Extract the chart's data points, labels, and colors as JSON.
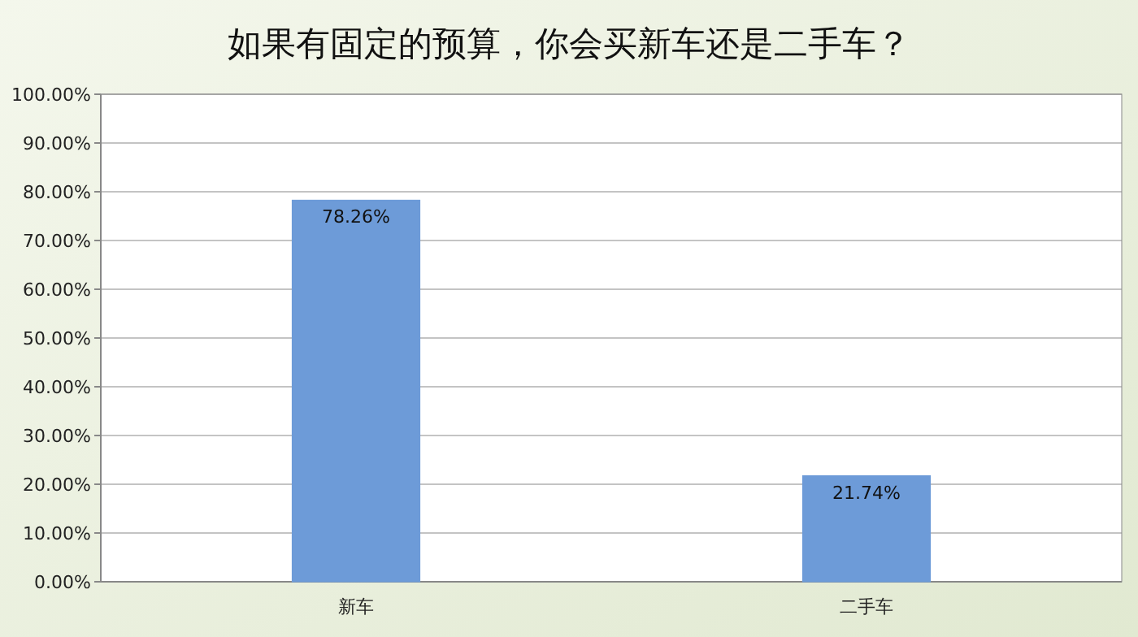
{
  "chart_data": {
    "type": "bar",
    "title": "如果有固定的预算，你会买新车还是二手车？",
    "categories": [
      "新车",
      "二手车"
    ],
    "values": [
      78.26,
      21.74
    ],
    "value_labels": [
      "78.26%",
      "21.74%"
    ],
    "color": "#6d9bd8",
    "ylim": [
      0,
      100
    ],
    "yticks": [
      {
        "value": 0,
        "label": "0.00%"
      },
      {
        "value": 10,
        "label": "10.00%"
      },
      {
        "value": 20,
        "label": "20.00%"
      },
      {
        "value": 30,
        "label": "30.00%"
      },
      {
        "value": 40,
        "label": "40.00%"
      },
      {
        "value": 50,
        "label": "50.00%"
      },
      {
        "value": 60,
        "label": "60.00%"
      },
      {
        "value": 70,
        "label": "70.00%"
      },
      {
        "value": 80,
        "label": "80.00%"
      },
      {
        "value": 90,
        "label": "90.00%"
      },
      {
        "value": 100,
        "label": "100.00%"
      }
    ],
    "grid": "y"
  }
}
